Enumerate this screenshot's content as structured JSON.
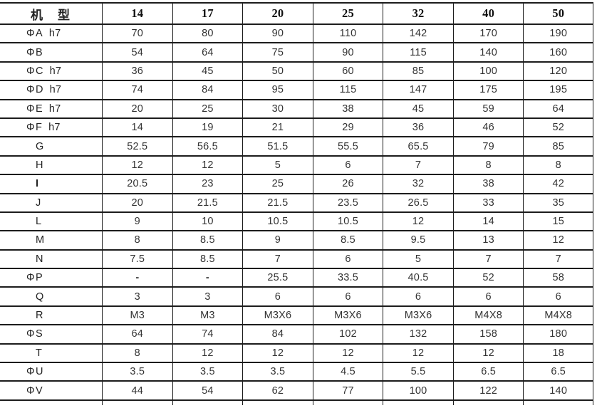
{
  "table": {
    "header": {
      "label": "机　型",
      "models": [
        "14",
        "17",
        "20",
        "25",
        "32",
        "40",
        "50"
      ]
    },
    "rows": [
      {
        "prefix": "Φ",
        "name": "A",
        "suffix": "h7",
        "bold": false,
        "values": [
          "70",
          "80",
          "90",
          "110",
          "142",
          "170",
          "190"
        ]
      },
      {
        "prefix": "Φ",
        "name": "B",
        "suffix": "",
        "bold": false,
        "values": [
          "54",
          "64",
          "75",
          "90",
          "115",
          "140",
          "160"
        ]
      },
      {
        "prefix": "Φ",
        "name": "C",
        "suffix": "h7",
        "bold": false,
        "values": [
          "36",
          "45",
          "50",
          "60",
          "85",
          "100",
          "120"
        ]
      },
      {
        "prefix": "Φ",
        "name": "D",
        "suffix": "h7",
        "bold": false,
        "values": [
          "74",
          "84",
          "95",
          "115",
          "147",
          "175",
          "195"
        ]
      },
      {
        "prefix": "Φ",
        "name": "E",
        "suffix": "h7",
        "bold": false,
        "values": [
          "20",
          "25",
          "30",
          "38",
          "45",
          "59",
          "64"
        ]
      },
      {
        "prefix": "Φ",
        "name": "F",
        "suffix": "h7",
        "bold": false,
        "values": [
          "14",
          "19",
          "21",
          "29",
          "36",
          "46",
          "52"
        ]
      },
      {
        "prefix": "",
        "name": "G",
        "suffix": "",
        "bold": false,
        "values": [
          "52.5",
          "56.5",
          "51.5",
          "55.5",
          "65.5",
          "79",
          "85"
        ]
      },
      {
        "prefix": "",
        "name": "H",
        "suffix": "",
        "bold": false,
        "values": [
          "12",
          "12",
          "5",
          "6",
          "7",
          "8",
          "8"
        ]
      },
      {
        "prefix": "",
        "name": "I",
        "suffix": "",
        "bold": true,
        "values": [
          "20.5",
          "23",
          "25",
          "26",
          "32",
          "38",
          "42"
        ]
      },
      {
        "prefix": "",
        "name": "J",
        "suffix": "",
        "bold": false,
        "values": [
          "20",
          "21.5",
          "21.5",
          "23.5",
          "26.5",
          "33",
          "35"
        ]
      },
      {
        "prefix": "",
        "name": "L",
        "suffix": "",
        "bold": false,
        "values": [
          "9",
          "10",
          "10.5",
          "10.5",
          "12",
          "14",
          "15"
        ]
      },
      {
        "prefix": "",
        "name": "M",
        "suffix": "",
        "bold": false,
        "values": [
          "8",
          "8.5",
          "9",
          "8.5",
          "9.5",
          "13",
          "12"
        ]
      },
      {
        "prefix": "",
        "name": "N",
        "suffix": "",
        "bold": false,
        "values": [
          "7.5",
          "8.5",
          "7",
          "6",
          "5",
          "7",
          "7"
        ]
      },
      {
        "prefix": "Φ",
        "name": "P",
        "suffix": "",
        "bold": false,
        "values": [
          "-",
          "-",
          "25.5",
          "33.5",
          "40.5",
          "52",
          "58"
        ]
      },
      {
        "prefix": "",
        "name": "Q",
        "suffix": "",
        "bold": false,
        "values": [
          "3",
          "3",
          "6",
          "6",
          "6",
          "6",
          "6"
        ]
      },
      {
        "prefix": "",
        "name": "R",
        "suffix": "",
        "bold": false,
        "values": [
          "M3",
          "M3",
          "M3X6",
          "M3X6",
          "M3X6",
          "M4X8",
          "M4X8"
        ]
      },
      {
        "prefix": "Φ",
        "name": "S",
        "suffix": "",
        "bold": false,
        "values": [
          "64",
          "74",
          "84",
          "102",
          "132",
          "158",
          "180"
        ]
      },
      {
        "prefix": "",
        "name": "T",
        "suffix": "",
        "bold": false,
        "values": [
          "8",
          "12",
          "12",
          "12",
          "12",
          "12",
          "18"
        ]
      },
      {
        "prefix": "Φ",
        "name": "U",
        "suffix": "",
        "bold": false,
        "values": [
          "3.5",
          "3.5",
          "3.5",
          "4.5",
          "5.5",
          "6.5",
          "6.5"
        ]
      },
      {
        "prefix": "Φ",
        "name": "V",
        "suffix": "",
        "bold": false,
        "values": [
          "44",
          "54",
          "62",
          "77",
          "100",
          "122",
          "140"
        ]
      }
    ]
  },
  "colors": {
    "border": "#1c1c1c",
    "text": "#333333"
  }
}
